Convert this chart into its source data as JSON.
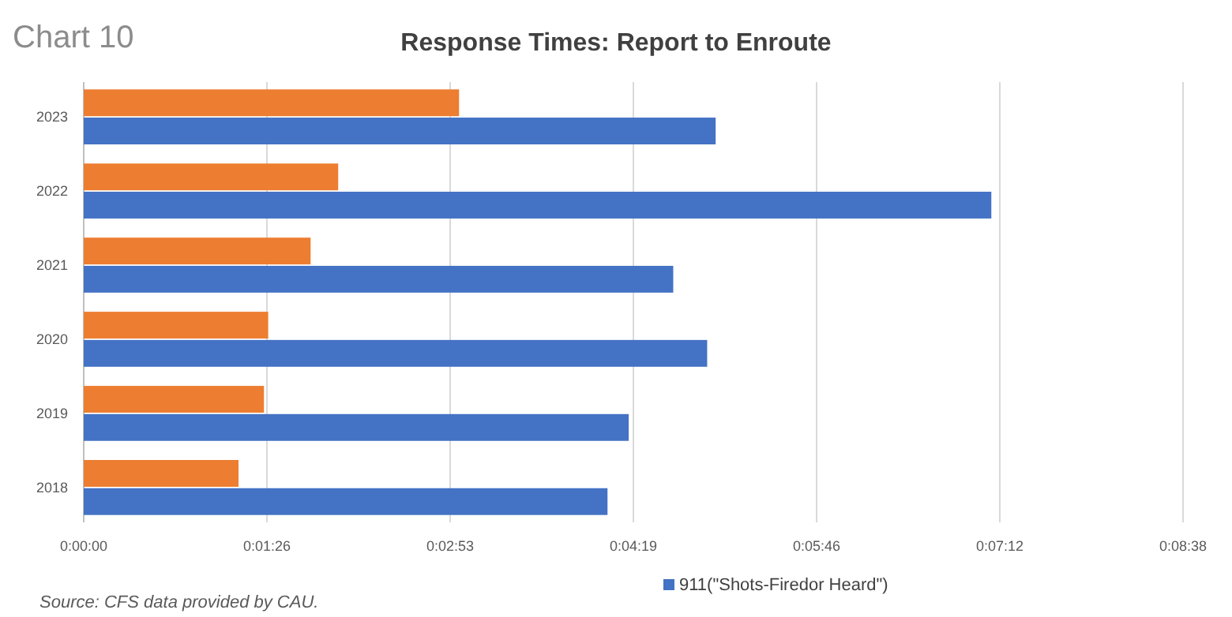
{
  "chart_data": {
    "type": "bar",
    "orientation": "horizontal",
    "title": "Response Times: Report to Enroute",
    "subtitle": "Chart 10",
    "categories": [
      "2023",
      "2022",
      "2021",
      "2020",
      "2019",
      "2018"
    ],
    "series": [
      {
        "color": "#ed7d31",
        "values": [
          177,
          120,
          107,
          87,
          85,
          73
        ]
      },
      {
        "name": "911(\"Shots-Firedor Heard\")",
        "color": "#4472c4",
        "values": [
          298,
          428,
          278,
          294,
          257,
          247
        ]
      }
    ],
    "xlim": [
      0,
      518.4
    ],
    "xticks": [
      {
        "value": 0,
        "label": "0:00:00"
      },
      {
        "value": 86.4,
        "label": "0:01:26"
      },
      {
        "value": 172.8,
        "label": "0:02:53"
      },
      {
        "value": 259.2,
        "label": "0:04:19"
      },
      {
        "value": 345.6,
        "label": "0:05:46"
      },
      {
        "value": 432,
        "label": "0:07:12"
      },
      {
        "value": 518.4,
        "label": "0:08:38"
      }
    ],
    "grid": "x",
    "legend": "bottom",
    "annotations": [
      "Source: CFS data provided by CAU."
    ]
  }
}
